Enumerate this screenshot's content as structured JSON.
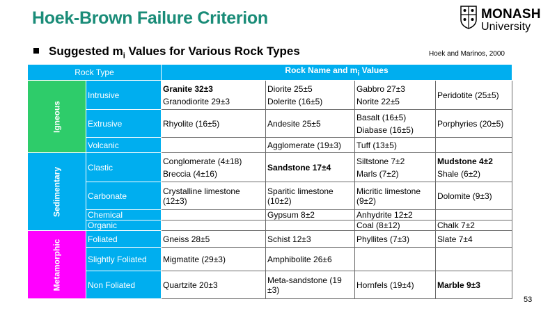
{
  "title": "Hoek-Brown Failure Criterion",
  "logo": {
    "line1": "MONASH",
    "line2": "University"
  },
  "bullet": {
    "text": "Suggested m",
    "sub": "i",
    "rest": " Values for Various Rock Types"
  },
  "citation": "Hoek and Marinos, 2000",
  "page_number": "53",
  "table": {
    "header": {
      "col1": "Rock Type",
      "col2_a": "Rock Name and m",
      "col2_sub": "i",
      "col2_b": " Values"
    },
    "categories": {
      "igneous": "Igneous",
      "sedimentary": "Sedimentary",
      "metamorphic": "Metamorphic"
    },
    "rows": {
      "intrusive": {
        "label": "Intrusive",
        "c1a": "Granite 32±3",
        "c1b": "Granodiorite 29±3",
        "c2a": "Diorite 25±5",
        "c2b": "Dolerite (16±5)",
        "c3a": "Gabbro 27±3",
        "c3b": "Norite 22±5",
        "c4": "Peridotite (25±5)"
      },
      "extrusive": {
        "label": "Extrusive",
        "c1": "Rhyolite (16±5)",
        "c2": "Andesite 25±5",
        "c3a": "Basalt (16±5)",
        "c3b": "Diabase (16±5)",
        "c4": "Porphyries (20±5)"
      },
      "volcanic": {
        "label": "Volcanic",
        "c2": "Agglomerate (19±3)",
        "c3": "Tuff (13±5)"
      },
      "clastic": {
        "label": "Clastic",
        "c1a": "Conglomerate (4±18)",
        "c1b": "Breccia (4±16)",
        "c2": "Sandstone 17±4",
        "c3a": "Siltstone 7±2",
        "c3b": "Marls (7±2)",
        "c4a": "Mudstone 4±2",
        "c4b": "Shale (6±2)"
      },
      "carbonate": {
        "label": "Carbonate",
        "c1": "Crystalline limestone (12±3)",
        "c2": "Sparitic limestone (10±2)",
        "c3": "Micritic limestone (9±2)",
        "c4": "Dolomite (9±3)"
      },
      "chemical": {
        "label": "Chemical",
        "c2": "Gypsum 8±2",
        "c3": "Anhydrite 12±2"
      },
      "organic": {
        "label": "Organic",
        "c3": "Coal (8±12)",
        "c4": "Chalk 7±2"
      },
      "foliated": {
        "label": "Foliated",
        "c1": "Gneiss 28±5",
        "c2": "Schist 12±3",
        "c3": "Phyllites (7±3)",
        "c4": "Slate 7±4"
      },
      "slightly_foliated": {
        "label": "Slightly Foliated",
        "c1": "Migmatite (29±3)",
        "c2": "Amphibolite 26±6"
      },
      "non_foliated": {
        "label": "Non Foliated",
        "c1": "Quartzite 20±3",
        "c2": "Meta-sandstone (19 ±3)",
        "c3": "Hornfels (19±4)",
        "c4": "Marble 9±3"
      }
    }
  },
  "colors": {
    "title": "#1a8c78",
    "header": "#00aeef",
    "igneous": "#2ecc6a",
    "sedimentary": "#00aeef",
    "metamorphic": "#ff00ff"
  }
}
